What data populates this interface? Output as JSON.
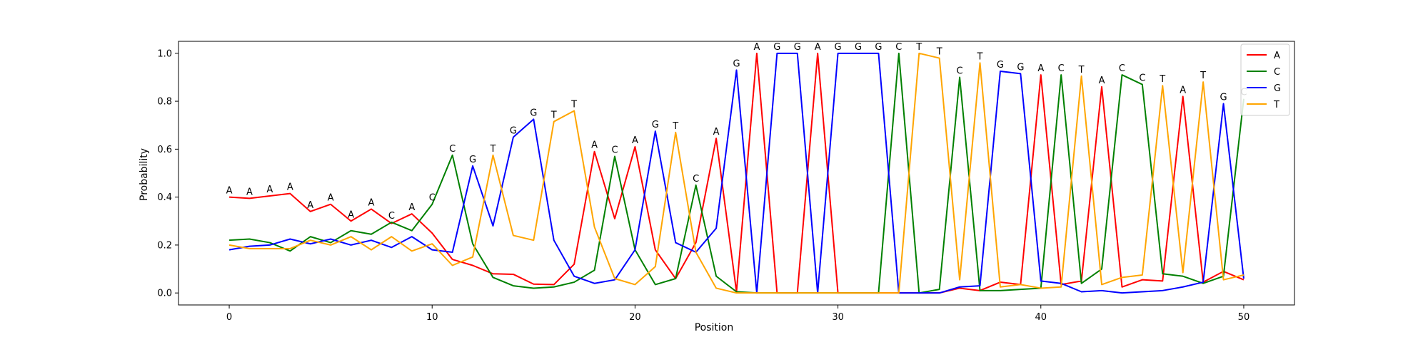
{
  "chart_data": {
    "type": "line",
    "title": "",
    "xlabel": "Position",
    "ylabel": "Probability",
    "xlim": [
      -2.5,
      52.5
    ],
    "ylim": [
      -0.05,
      1.05
    ],
    "x_ticks": [
      0,
      10,
      20,
      30,
      40,
      50
    ],
    "y_ticks": [
      0.0,
      0.2,
      0.4,
      0.6,
      0.8,
      1.0
    ],
    "grid": false,
    "legend_position": "top-right",
    "x": [
      0,
      1,
      2,
      3,
      4,
      5,
      6,
      7,
      8,
      9,
      10,
      11,
      12,
      13,
      14,
      15,
      16,
      17,
      18,
      19,
      20,
      21,
      22,
      23,
      24,
      25,
      26,
      27,
      28,
      29,
      30,
      31,
      32,
      33,
      34,
      35,
      36,
      37,
      38,
      39,
      40,
      41,
      42,
      43,
      44,
      45,
      46,
      47,
      48,
      49,
      50
    ],
    "series": [
      {
        "name": "A",
        "color": "#ff0000",
        "values": [
          0.4,
          0.395,
          0.405,
          0.415,
          0.34,
          0.37,
          0.3,
          0.35,
          0.29,
          0.33,
          0.25,
          0.14,
          0.115,
          0.08,
          0.078,
          0.037,
          0.035,
          0.12,
          0.59,
          0.31,
          0.61,
          0.18,
          0.06,
          0.21,
          0.645,
          0.005,
          1.0,
          0.0,
          0.0,
          1.0,
          0.0,
          0.0,
          0.0,
          0.0,
          0.0,
          0.0,
          0.02,
          0.01,
          0.045,
          0.035,
          0.91,
          0.035,
          0.05,
          0.86,
          0.025,
          0.055,
          0.05,
          0.82,
          0.045,
          0.09,
          0.055
        ]
      },
      {
        "name": "C",
        "color": "#008000",
        "values": [
          0.22,
          0.225,
          0.21,
          0.175,
          0.235,
          0.21,
          0.26,
          0.245,
          0.295,
          0.26,
          0.37,
          0.575,
          0.205,
          0.065,
          0.03,
          0.02,
          0.025,
          0.045,
          0.095,
          0.57,
          0.18,
          0.035,
          0.06,
          0.45,
          0.07,
          0.005,
          0.0,
          0.0,
          0.0,
          0.0,
          0.0,
          0.0,
          0.0,
          1.0,
          0.0,
          0.015,
          0.9,
          0.01,
          0.01,
          0.015,
          0.02,
          0.91,
          0.04,
          0.1,
          0.91,
          0.87,
          0.08,
          0.07,
          0.04,
          0.07,
          0.81
        ]
      },
      {
        "name": "G",
        "color": "#0000ff",
        "values": [
          0.18,
          0.195,
          0.2,
          0.225,
          0.205,
          0.225,
          0.2,
          0.22,
          0.19,
          0.235,
          0.18,
          0.17,
          0.53,
          0.28,
          0.65,
          0.725,
          0.22,
          0.07,
          0.04,
          0.055,
          0.18,
          0.675,
          0.21,
          0.17,
          0.27,
          0.93,
          0.0,
          1.0,
          1.0,
          0.0,
          1.0,
          1.0,
          1.0,
          0.0,
          0.0,
          0.0,
          0.025,
          0.03,
          0.925,
          0.915,
          0.05,
          0.04,
          0.005,
          0.01,
          0.0,
          0.005,
          0.01,
          0.025,
          0.045,
          0.79,
          0.06
        ]
      },
      {
        "name": "T",
        "color": "#ffa500",
        "values": [
          0.2,
          0.185,
          0.185,
          0.185,
          0.22,
          0.2,
          0.235,
          0.18,
          0.235,
          0.175,
          0.205,
          0.115,
          0.15,
          0.575,
          0.24,
          0.22,
          0.715,
          0.76,
          0.275,
          0.06,
          0.035,
          0.11,
          0.67,
          0.17,
          0.02,
          0.0,
          0.0,
          0.0,
          0.0,
          0.0,
          0.0,
          0.0,
          0.0,
          0.0,
          1.0,
          0.98,
          0.055,
          0.96,
          0.025,
          0.035,
          0.02,
          0.025,
          0.905,
          0.035,
          0.065,
          0.075,
          0.865,
          0.085,
          0.88,
          0.055,
          0.075
        ]
      }
    ],
    "annotations": [
      "A",
      "A",
      "A",
      "A",
      "A",
      "A",
      "A",
      "A",
      "C",
      "A",
      "C",
      "C",
      "G",
      "T",
      "G",
      "G",
      "T",
      "T",
      "A",
      "C",
      "A",
      "G",
      "T",
      "C",
      "A",
      "G",
      "A",
      "G",
      "G",
      "A",
      "G",
      "G",
      "G",
      "C",
      "T",
      "T",
      "C",
      "T",
      "G",
      "G",
      "A",
      "C",
      "T",
      "A",
      "C",
      "C",
      "T",
      "A",
      "T",
      "G",
      "C"
    ]
  }
}
